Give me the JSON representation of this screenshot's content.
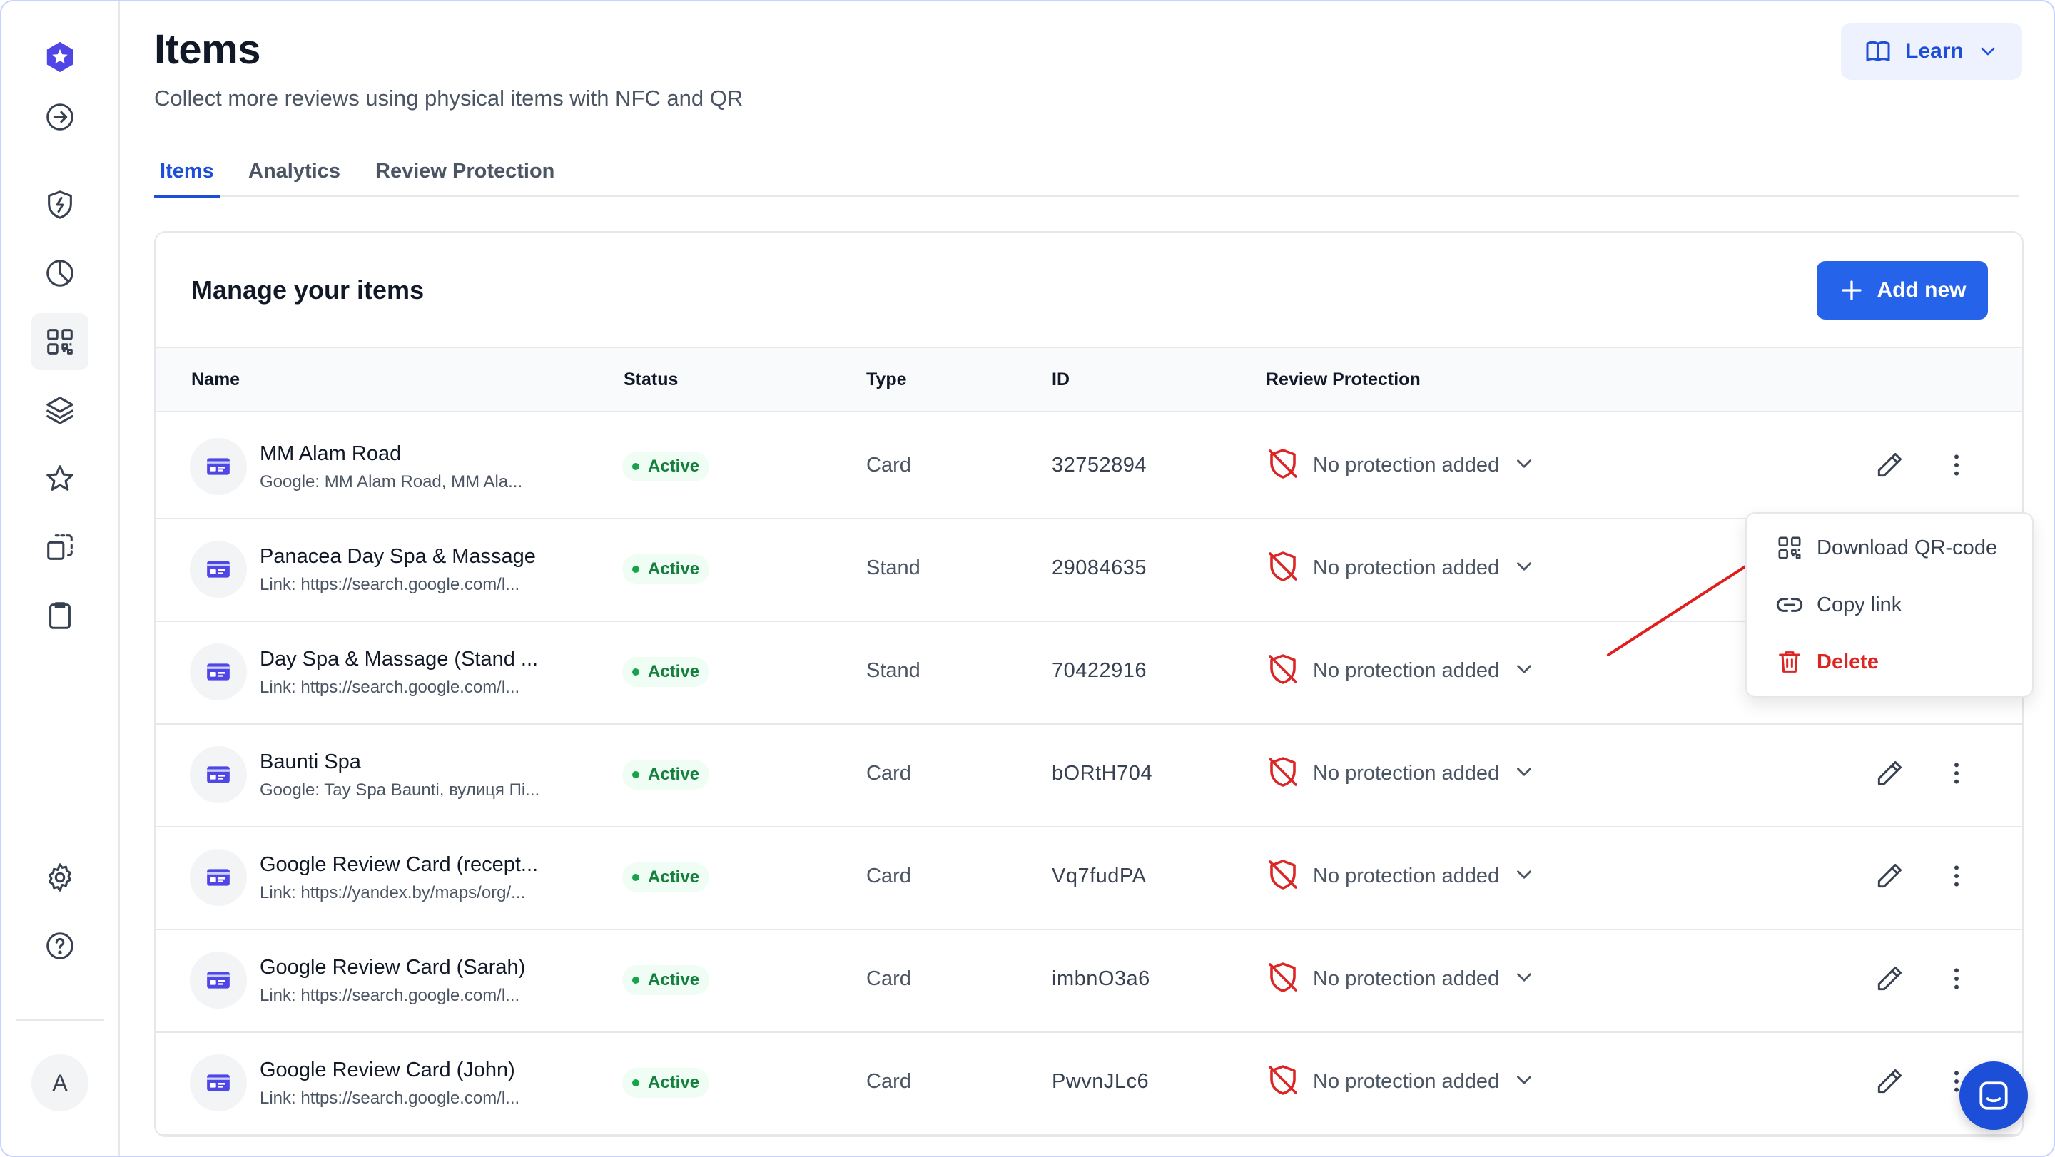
{
  "header": {
    "title": "Items",
    "subtitle": "Collect more reviews using physical items with NFC and QR",
    "learn_label": "Learn"
  },
  "tabs": [
    {
      "label": "Items",
      "active": true
    },
    {
      "label": "Analytics",
      "active": false
    },
    {
      "label": "Review Protection",
      "active": false
    }
  ],
  "card": {
    "title": "Manage your items",
    "add_label": "Add new"
  },
  "table": {
    "columns": [
      "Name",
      "Status",
      "Type",
      "ID",
      "Review Protection"
    ],
    "rows": [
      {
        "name": "MM Alam Road",
        "link": "Google: MM Alam Road, MM Ala...",
        "status": "Active",
        "type": "Card",
        "id": "32752894",
        "protection": "No protection added"
      },
      {
        "name": "Panacea Day Spa & Massage",
        "link": "Link: https://search.google.com/l...",
        "status": "Active",
        "type": "Stand",
        "id": "29084635",
        "protection": "No protection added"
      },
      {
        "name": "Day Spa & Massage (Stand ...",
        "link": "Link: https://search.google.com/l...",
        "status": "Active",
        "type": "Stand",
        "id": "70422916",
        "protection": "No protection added"
      },
      {
        "name": "Baunti Spa",
        "link": "Google: Tay Spa Baunti, вулиця Пі...",
        "status": "Active",
        "type": "Card",
        "id": "bORtH704",
        "protection": "No protection added"
      },
      {
        "name": "Google Review Card (recept...",
        "link": "Link: https://yandex.by/maps/org/...",
        "status": "Active",
        "type": "Card",
        "id": "Vq7fudPA",
        "protection": "No protection added"
      },
      {
        "name": "Google Review Card (Sarah)",
        "link": "Link: https://search.google.com/l...",
        "status": "Active",
        "type": "Card",
        "id": "imbnO3a6",
        "protection": "No protection added"
      },
      {
        "name": "Google Review Card (John)",
        "link": "Link: https://search.google.com/l...",
        "status": "Active",
        "type": "Card",
        "id": "PwvnJLc6",
        "protection": "No protection added"
      }
    ]
  },
  "menu": {
    "download": "Download QR-code",
    "copy": "Copy link",
    "delete": "Delete"
  },
  "sidebar": {
    "avatar": "A"
  },
  "colors": {
    "accent": "#2563eb",
    "success": "#16a34a",
    "danger": "#dc2626"
  }
}
